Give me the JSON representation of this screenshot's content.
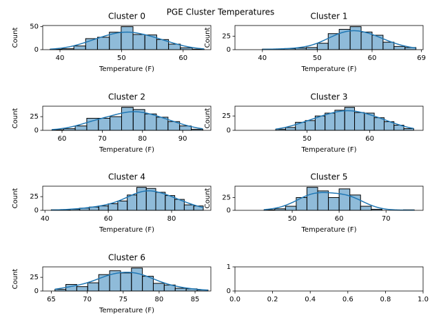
{
  "title": "PGE Cluster Temperatures",
  "chart_data": [
    {
      "type": "histogram",
      "title": "Cluster 0",
      "xlabel": "Temperature (F)",
      "ylabel": "Count",
      "color": "#1f77b4",
      "bins": [
        38.4,
        40.32,
        42.25,
        44.17,
        46.09,
        48.02,
        49.94,
        51.86,
        53.78,
        55.71,
        57.63,
        59.55,
        61.48,
        63.4
      ],
      "values": [
        1,
        2,
        8,
        24,
        27,
        38,
        50,
        33,
        32,
        22,
        12,
        4,
        1
      ],
      "xlim": [
        37.2,
        64.5
      ],
      "xticks": [
        40,
        50,
        60
      ],
      "ylim": [
        0,
        52.5
      ],
      "yticks": [
        0,
        50
      ]
    },
    {
      "type": "histogram",
      "title": "Cluster 1",
      "xlabel": "Temperature (F)",
      "ylabel": "Count",
      "color": "#1f77b4",
      "bins": [
        40,
        42,
        44,
        46,
        48,
        50,
        52,
        54,
        56,
        58,
        60,
        62,
        64,
        66,
        68
      ],
      "values": [
        1,
        1,
        2,
        3,
        4,
        12,
        30,
        38,
        43,
        33,
        27,
        14,
        6,
        4
      ],
      "xlim": [
        35,
        69.3
      ],
      "xticks": [
        40,
        50,
        60,
        69
      ],
      "ylim": [
        0,
        45.15
      ],
      "yticks": [
        0,
        25
      ]
    },
    {
      "type": "histogram",
      "title": "Cluster 2",
      "xlabel": "Temperature (F)",
      "ylabel": "Count",
      "color": "#1f77b4",
      "bins": [
        57.5,
        60.38,
        63.27,
        66.15,
        69.04,
        71.92,
        74.81,
        77.69,
        80.58,
        83.46,
        86.35,
        89.23,
        92.12,
        95
      ],
      "values": [
        1,
        3,
        8,
        22,
        22,
        25,
        42,
        38,
        30,
        24,
        16,
        8,
        2
      ],
      "xlim": [
        55.2,
        97
      ],
      "xticks": [
        60,
        70,
        80,
        90
      ],
      "ylim": [
        0,
        44.1
      ],
      "yticks": [
        0,
        25
      ]
    },
    {
      "type": "histogram",
      "title": "Cluster 3",
      "xlabel": "Temperature (F)",
      "ylabel": "Count",
      "color": "#1f77b4",
      "bins": [
        45,
        46.57,
        48.14,
        49.71,
        51.29,
        52.86,
        54.43,
        56,
        57.57,
        59.14,
        60.71,
        62.29,
        63.86,
        65.43,
        67
      ],
      "values": [
        2,
        5,
        14,
        17,
        25,
        30,
        35,
        40,
        31,
        30,
        22,
        15,
        9,
        3
      ],
      "xlim": [
        38.5,
        68.5
      ],
      "xticks": [
        50,
        60
      ],
      "ylim": [
        0,
        42
      ],
      "yticks": [
        0,
        25
      ]
    },
    {
      "type": "histogram",
      "title": "Cluster 4",
      "xlabel": "Temperature (F)",
      "ylabel": "Count",
      "color": "#1f77b4",
      "bins": [
        42,
        45,
        48,
        51,
        54,
        57,
        60,
        63,
        66,
        69,
        72,
        75,
        78,
        81,
        84,
        87,
        90
      ],
      "values": [
        1,
        1,
        2,
        4,
        6,
        8,
        12,
        17,
        28,
        42,
        40,
        33,
        27,
        20,
        10,
        8
      ],
      "xlim": [
        39.3,
        92.4
      ],
      "xticks": [
        40,
        60,
        80
      ],
      "ylim": [
        0,
        44.1
      ],
      "yticks": [
        0,
        25
      ]
    },
    {
      "type": "histogram",
      "title": "Cluster 5",
      "xlabel": "Temperature (F)",
      "ylabel": "Count",
      "color": "#1f77b4",
      "bins": [
        44,
        46.29,
        48.57,
        50.86,
        53.14,
        55.43,
        57.71,
        60,
        62.29,
        64.57,
        66.86,
        69.14,
        71.43,
        73.71,
        76
      ],
      "values": [
        1,
        3,
        8,
        25,
        45,
        38,
        25,
        42,
        30,
        8,
        2,
        0,
        0,
        1
      ],
      "xlim": [
        37.8,
        77.9
      ],
      "xticks": [
        50,
        60,
        70
      ],
      "ylim": [
        0,
        47.25
      ],
      "yticks": [
        0,
        25
      ]
    },
    {
      "type": "histogram",
      "title": "Cluster 6",
      "xlabel": "Temperature (F)",
      "ylabel": "Count",
      "color": "#1f77b4",
      "bins": [
        65.5,
        67.02,
        68.54,
        70.06,
        71.59,
        73.11,
        74.63,
        76.15,
        77.67,
        79.19,
        80.71,
        82.24,
        83.76,
        85.28,
        86.8
      ],
      "values": [
        3,
        12,
        8,
        15,
        30,
        37,
        33,
        42,
        27,
        14,
        11,
        5,
        4,
        2
      ],
      "xlim": [
        63.8,
        87.2
      ],
      "xticks": [
        65,
        70,
        75,
        80,
        85
      ],
      "ylim": [
        0,
        44.1
      ],
      "yticks": [
        0,
        25
      ]
    },
    {
      "type": "axes",
      "xlim": [
        0,
        1
      ],
      "xticks": [
        {
          "value": 0,
          "label": "0.0"
        },
        {
          "value": 0.2,
          "label": "0.2"
        },
        {
          "value": 0.4,
          "label": "0.4"
        },
        {
          "value": 0.6,
          "label": "0.6"
        },
        {
          "value": 0.8,
          "label": "0.8"
        },
        {
          "value": 1,
          "label": "1.0"
        }
      ],
      "ylim": [
        0,
        1
      ],
      "yticks": [
        0,
        1
      ]
    }
  ]
}
